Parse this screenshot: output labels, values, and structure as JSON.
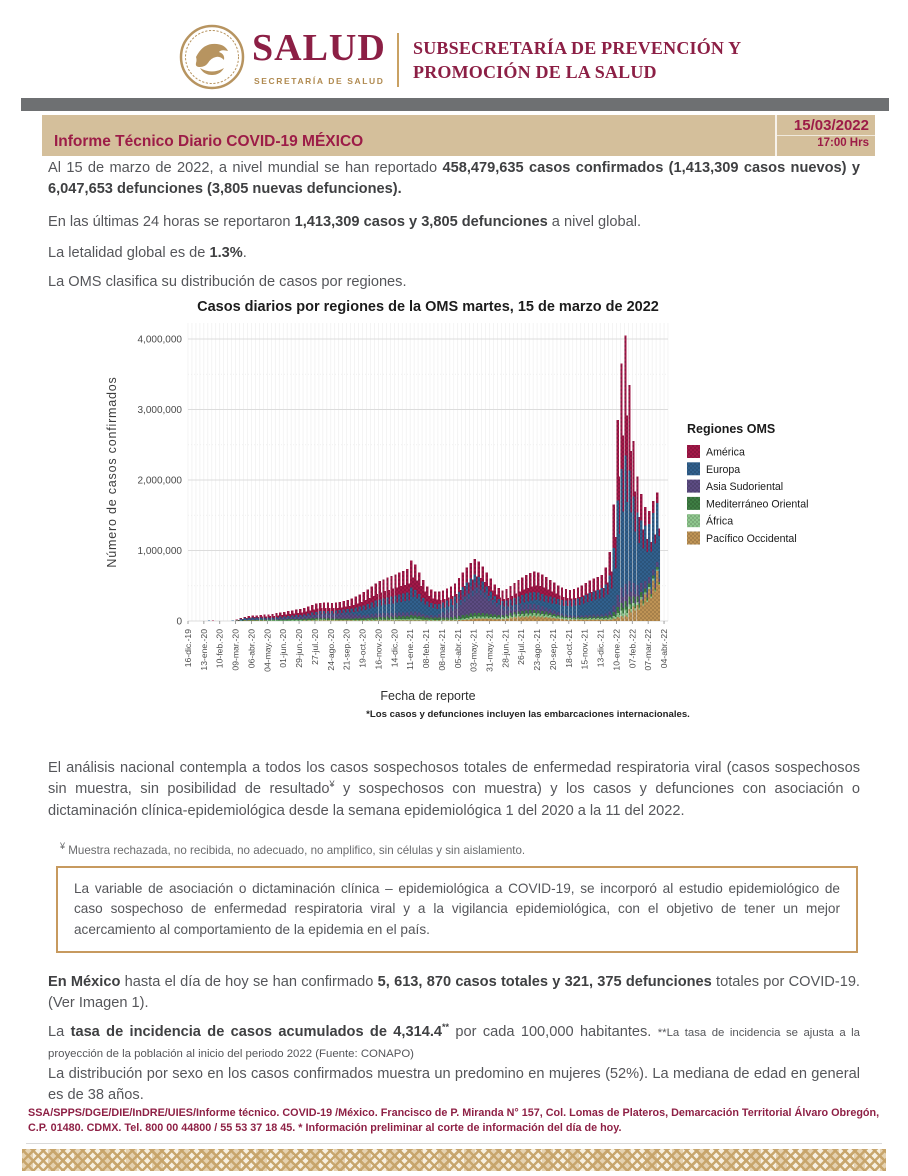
{
  "header": {
    "logo_salud": "SALUD",
    "logo_secretaria": "SECRETARÍA DE SALUD",
    "subsecretaria_line1": "SUBSECRETARÍA DE PREVENCIÓN Y",
    "subsecretaria_line2": "PROMOCIÓN DE LA SALUD"
  },
  "banner": {
    "title": "Informe Técnico Diario COVID-19 MÉXICO",
    "date": "15/03/2022",
    "time": "17:00 Hrs"
  },
  "colors": {
    "maroon": "#8c1f45",
    "banner_crimson": "#9c1c47",
    "banner_tan": "#d4bf9b",
    "gold": "#b08a50",
    "gray_bar": "#6e7072",
    "body_gray": "#55565a",
    "callout_border": "#c79a5f"
  },
  "paragraphs": {
    "p1_pre": "Al 15 de marzo de 2022, a nivel mundial se han reportado ",
    "p1_bold": "458,479,635 casos confirmados (1,413,309 casos nuevos) y 6,047,653 defunciones (3,805 nuevas defunciones).",
    "p2_pre": "En las últimas 24 horas se reportaron ",
    "p2_bold": "1,413,309 casos y 3,805 defunciones",
    "p2_post": " a nivel global.",
    "p3_pre": "La letalidad global es de ",
    "p3_bold": "1.3%",
    "p3_post": ".",
    "p4": "La OMS clasifica su distribución de casos por regiones.",
    "p5_pre": "El análisis nacional contempla a todos los casos sospechosos totales de enfermedad respiratoria viral (casos sospechosos sin muestra, sin posibilidad de resultado",
    "p5_sup": "¥",
    "p5_post": " y sospechosos con muestra) y los casos y defunciones con asociación o dictaminación clínica-epidemiológica desde la semana epidemiológica 1 del 2020 a la 11 del 2022.",
    "p5_note_sup": "¥",
    "p5_note": " Muestra rechazada, no recibida, no adecuado, no amplifico, sin células y sin aislamiento.",
    "callout": "La variable de asociación o dictaminación clínica – epidemiológica a COVID-19, se incorporó al estudio epidemiológico de caso sospechoso de enfermedad respiratoria viral y a la vigilancia epidemiológica, con el objetivo de tener un mejor acercamiento al comportamiento de la epidemia en el país.",
    "p6_bold1": "En México",
    "p6_mid": " hasta el día de hoy se han confirmado ",
    "p6_bold2": "5, 613, 870 casos totales y 321, 375 defunciones",
    "p6_post": " totales por COVID-19. (Ver Imagen 1).",
    "p7_pre": "La ",
    "p7_bold": "tasa de incidencia de casos acumulados de 4,314.4",
    "p7_sup": "**",
    "p7_mid": " por cada 100,000 habitantes. ",
    "p7_small": "**La tasa de incidencia se ajusta a la proyección de la población al inicio del periodo 2022 (Fuente: CONAPO)",
    "p8": "La distribución por sexo en los casos confirmados muestra un predomino en mujeres (52%). La mediana de edad en general es de 38 años."
  },
  "footer": {
    "text": "SSA/SPPS/DGE/DIE/InDRE/UIES/Informe técnico. COVID-19 /México. Francisco de P. Miranda N° 157, Col. Lomas de Plateros, Demarcación Territorial Álvaro Obregón, C.P. 01480. CDMX. Tel. 800 00 44800 / 55 53 37 18 45. * Información preliminar al corte de información del día de hoy."
  },
  "chart_data": {
    "type": "bar",
    "stacked": true,
    "title": "Casos diarios por regiones de la OMS martes, 15 de marzo de 2022",
    "xlabel": "Fecha de reporte",
    "ylabel": "Número de casos confirmados",
    "footnote": "*Los casos y defunciones incluyen las embarcaciones internacionales.",
    "legend_title": "Regiones OMS",
    "ylim": [
      0,
      4200000
    ],
    "yticks": [
      {
        "value": 0,
        "label": "0"
      },
      {
        "value": 1000000,
        "label": "1,000,000"
      },
      {
        "value": 2000000,
        "label": "2,000,000"
      },
      {
        "value": 3000000,
        "label": "3,000,000"
      },
      {
        "value": 4000000,
        "label": "4,000,000"
      }
    ],
    "xticklabels": [
      "16-dic.-19",
      "13-ene.-20",
      "10-feb.-20",
      "09-mar.-20",
      "06-abr.-20",
      "04-may.-20",
      "01-jun.-20",
      "29-jun.-20",
      "27-jul.-20",
      "24-ago.-20",
      "21-sep.-20",
      "19-oct.-20",
      "16-nov.-20",
      "14-dic.-20",
      "11-ene.-21",
      "08-feb.-21",
      "08-mar.-21",
      "05-abr.-21",
      "03-may.-21",
      "31-may.-21",
      "28-jun.-21",
      "26-jul.-21",
      "23-ago.-21",
      "20-sep.-21",
      "18-oct.-21",
      "15-nov.-21",
      "13-dic.-21",
      "10-ene.-22",
      "07-feb.-22",
      "07-mar.-22",
      "04-abr.-22"
    ],
    "x_tick_step_weeks": 4,
    "series": [
      {
        "name": "América",
        "color": "#A21848"
      },
      {
        "name": "Europa",
        "color": "#31608D"
      },
      {
        "name": "Asia Sudoriental",
        "color": "#5C4B82"
      },
      {
        "name": "Mediterráneo Oriental",
        "color": "#3E7D43"
      },
      {
        "name": "África",
        "color": "#8FC78E"
      },
      {
        "name": "Pacífico Occidental",
        "color": "#BE9355"
      }
    ],
    "stack_order_bottom_to_top": [
      "Pacífico Occidental",
      "África",
      "Mediterráneo Oriental",
      "Asia Sudoriental",
      "Europa",
      "América"
    ],
    "weekly_totals_thousands": [
      0,
      0,
      1,
      2,
      4,
      6,
      5,
      3,
      2,
      2,
      3,
      6,
      20,
      40,
      60,
      70,
      75,
      80,
      85,
      90,
      95,
      100,
      110,
      120,
      130,
      140,
      150,
      160,
      170,
      185,
      205,
      225,
      245,
      255,
      260,
      260,
      255,
      260,
      270,
      285,
      300,
      320,
      345,
      375,
      410,
      450,
      490,
      530,
      565,
      590,
      615,
      640,
      660,
      685,
      710,
      740,
      860,
      800,
      690,
      580,
      490,
      445,
      420,
      415,
      435,
      460,
      490,
      530,
      610,
      690,
      760,
      820,
      880,
      845,
      770,
      690,
      600,
      520,
      465,
      435,
      455,
      495,
      540,
      580,
      620,
      655,
      680,
      700,
      690,
      660,
      625,
      585,
      545,
      505,
      472,
      452,
      442,
      452,
      472,
      502,
      540,
      572,
      600,
      625,
      655,
      760,
      980,
      1650,
      2850,
      3650,
      4050,
      3350,
      2550,
      2050,
      1800,
      1620,
      1560,
      1700,
      1820
    ],
    "composition_keyframes": [
      {
        "week": 0,
        "fractions": [
          0.15,
          0.1,
          0.05,
          0.05,
          0.05,
          0.6
        ]
      },
      {
        "week": 10,
        "fractions": [
          0.15,
          0.15,
          0.05,
          0.1,
          0.05,
          0.5
        ]
      },
      {
        "week": 13,
        "fractions": [
          0.32,
          0.42,
          0.04,
          0.12,
          0.02,
          0.08
        ]
      },
      {
        "week": 18,
        "fractions": [
          0.42,
          0.3,
          0.06,
          0.13,
          0.04,
          0.05
        ]
      },
      {
        "week": 22,
        "fractions": [
          0.5,
          0.18,
          0.13,
          0.12,
          0.05,
          0.02
        ]
      },
      {
        "week": 30,
        "fractions": [
          0.48,
          0.12,
          0.22,
          0.1,
          0.06,
          0.02
        ]
      },
      {
        "week": 38,
        "fractions": [
          0.42,
          0.14,
          0.3,
          0.08,
          0.04,
          0.02
        ]
      },
      {
        "week": 44,
        "fractions": [
          0.46,
          0.33,
          0.11,
          0.06,
          0.03,
          0.01
        ]
      },
      {
        "week": 56,
        "fractions": [
          0.45,
          0.39,
          0.06,
          0.06,
          0.03,
          0.01
        ]
      },
      {
        "week": 62,
        "fractions": [
          0.43,
          0.38,
          0.08,
          0.07,
          0.03,
          0.01
        ]
      },
      {
        "week": 68,
        "fractions": [
          0.32,
          0.16,
          0.4,
          0.07,
          0.03,
          0.02
        ]
      },
      {
        "week": 72,
        "fractions": [
          0.25,
          0.12,
          0.5,
          0.06,
          0.03,
          0.04
        ]
      },
      {
        "week": 78,
        "fractions": [
          0.33,
          0.17,
          0.32,
          0.07,
          0.05,
          0.06
        ]
      },
      {
        "week": 82,
        "fractions": [
          0.4,
          0.2,
          0.16,
          0.07,
          0.06,
          0.11
        ]
      },
      {
        "week": 90,
        "fractions": [
          0.42,
          0.27,
          0.1,
          0.06,
          0.06,
          0.09
        ]
      },
      {
        "week": 97,
        "fractions": [
          0.33,
          0.5,
          0.05,
          0.04,
          0.04,
          0.04
        ]
      },
      {
        "week": 104,
        "fractions": [
          0.29,
          0.57,
          0.04,
          0.04,
          0.03,
          0.03
        ]
      },
      {
        "week": 108,
        "fractions": [
          0.4,
          0.47,
          0.06,
          0.03,
          0.02,
          0.02
        ]
      },
      {
        "week": 110,
        "fractions": [
          0.42,
          0.45,
          0.06,
          0.03,
          0.02,
          0.02
        ]
      },
      {
        "week": 113,
        "fractions": [
          0.25,
          0.5,
          0.08,
          0.04,
          0.02,
          0.11
        ]
      },
      {
        "week": 116,
        "fractions": [
          0.12,
          0.48,
          0.06,
          0.03,
          0.02,
          0.29
        ]
      },
      {
        "week": 118,
        "fractions": [
          0.08,
          0.46,
          0.04,
          0.02,
          0.01,
          0.39
        ]
      }
    ],
    "grid": true,
    "legend_position": "right"
  }
}
